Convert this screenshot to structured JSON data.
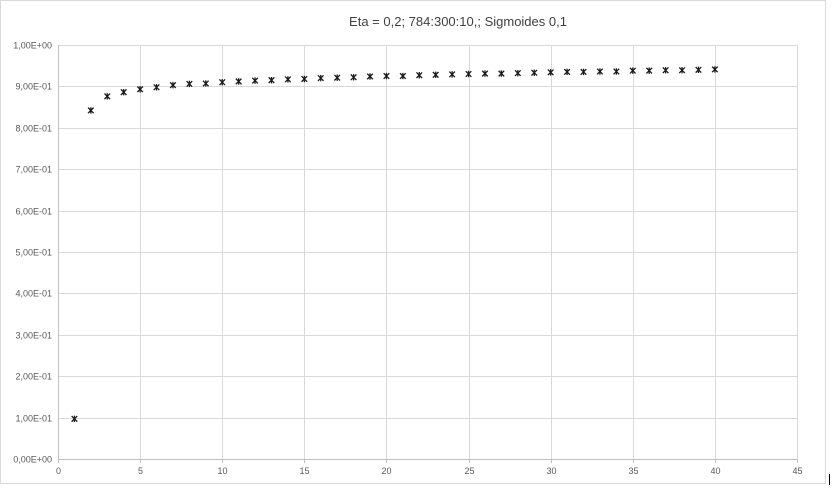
{
  "chart_data": {
    "type": "scatter",
    "title": "Eta = 0,2; 784:300:10,;  Sigmoides 0,1",
    "xlabel": "",
    "ylabel": "",
    "xlim": [
      0,
      45
    ],
    "ylim": [
      0,
      1
    ],
    "x_ticks": [
      0,
      5,
      10,
      15,
      20,
      25,
      30,
      35,
      40,
      45
    ],
    "x_tick_labels": [
      "0",
      "5",
      "10",
      "15",
      "20",
      "25",
      "30",
      "35",
      "40",
      "45"
    ],
    "y_ticks": [
      0,
      0.1,
      0.2,
      0.3,
      0.4,
      0.5,
      0.6,
      0.7,
      0.8,
      0.9,
      1.0
    ],
    "y_tick_labels": [
      "0,00E+00",
      "1,00E-01",
      "2,00E-01",
      "3,00E-01",
      "4,00E-01",
      "5,00E-01",
      "6,00E-01",
      "7,00E-01",
      "8,00E-01",
      "9,00E-01",
      "1,00E+00"
    ],
    "grid": true,
    "marker": "asterisk",
    "marker_color": "#1a1a1a",
    "x": [
      1,
      2,
      3,
      4,
      5,
      6,
      7,
      8,
      9,
      10,
      11,
      12,
      13,
      14,
      15,
      16,
      17,
      18,
      19,
      20,
      21,
      22,
      23,
      24,
      25,
      26,
      27,
      28,
      29,
      30,
      31,
      32,
      33,
      34,
      35,
      36,
      37,
      38,
      39,
      40
    ],
    "y": [
      0.097,
      0.842,
      0.876,
      0.886,
      0.893,
      0.898,
      0.903,
      0.906,
      0.907,
      0.91,
      0.912,
      0.914,
      0.915,
      0.917,
      0.918,
      0.92,
      0.921,
      0.922,
      0.924,
      0.925,
      0.925,
      0.927,
      0.928,
      0.929,
      0.93,
      0.931,
      0.931,
      0.932,
      0.933,
      0.934,
      0.935,
      0.935,
      0.936,
      0.936,
      0.938,
      0.938,
      0.939,
      0.939,
      0.94,
      0.941
    ]
  }
}
